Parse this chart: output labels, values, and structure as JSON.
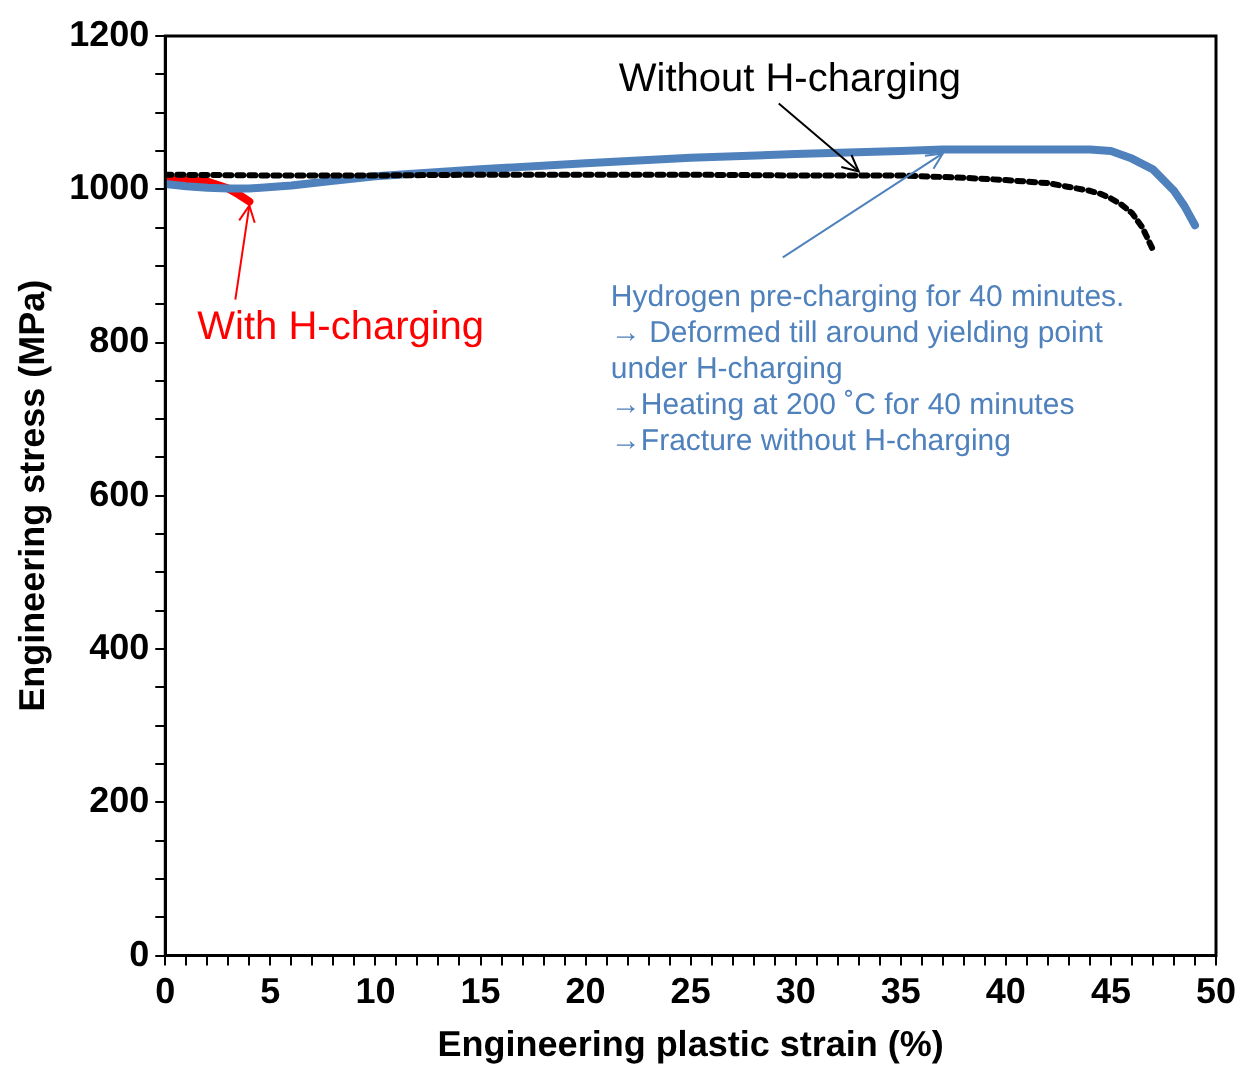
{
  "chart_data": {
    "type": "line",
    "xlabel": "Engineering plastic strain (%)",
    "ylabel": "Engineering stress (MPa)",
    "xlim": [
      0,
      50
    ],
    "ylim": [
      0,
      1200
    ],
    "xticks": [
      0,
      {
        "value": 1,
        "label": null
      },
      {
        "value": 2,
        "label": null
      },
      {
        "value": 3,
        "label": null
      },
      {
        "value": 4,
        "label": null
      },
      5,
      {
        "value": 6,
        "label": null
      },
      {
        "value": 7,
        "label": null
      },
      {
        "value": 8,
        "label": null
      },
      {
        "value": 9,
        "label": null
      },
      10,
      {
        "value": 11,
        "label": null
      },
      {
        "value": 12,
        "label": null
      },
      {
        "value": 13,
        "label": null
      },
      {
        "value": 14,
        "label": null
      },
      15,
      {
        "value": 16,
        "label": null
      },
      {
        "value": 17,
        "label": null
      },
      {
        "value": 18,
        "label": null
      },
      {
        "value": 19,
        "label": null
      },
      20,
      {
        "value": 21,
        "label": null
      },
      {
        "value": 22,
        "label": null
      },
      {
        "value": 23,
        "label": null
      },
      {
        "value": 24,
        "label": null
      },
      25,
      {
        "value": 26,
        "label": null
      },
      {
        "value": 27,
        "label": null
      },
      {
        "value": 28,
        "label": null
      },
      {
        "value": 29,
        "label": null
      },
      30,
      {
        "value": 31,
        "label": null
      },
      {
        "value": 32,
        "label": null
      },
      {
        "value": 33,
        "label": null
      },
      {
        "value": 34,
        "label": null
      },
      35,
      {
        "value": 36,
        "label": null
      },
      {
        "value": 37,
        "label": null
      },
      {
        "value": 38,
        "label": null
      },
      {
        "value": 39,
        "label": null
      },
      40,
      {
        "value": 41,
        "label": null
      },
      {
        "value": 42,
        "label": null
      },
      {
        "value": 43,
        "label": null
      },
      {
        "value": 44,
        "label": null
      },
      45,
      {
        "value": 46,
        "label": null
      },
      {
        "value": 47,
        "label": null
      },
      {
        "value": 48,
        "label": null
      },
      {
        "value": 49,
        "label": null
      },
      50
    ],
    "yticks": [
      0,
      {
        "value": 50,
        "label": null
      },
      {
        "value": 100,
        "label": null
      },
      {
        "value": 150,
        "label": null
      },
      200,
      {
        "value": 250,
        "label": null
      },
      {
        "value": 300,
        "label": null
      },
      {
        "value": 350,
        "label": null
      },
      400,
      {
        "value": 450,
        "label": null
      },
      {
        "value": 500,
        "label": null
      },
      {
        "value": 550,
        "label": null
      },
      600,
      {
        "value": 650,
        "label": null
      },
      {
        "value": 700,
        "label": null
      },
      {
        "value": 750,
        "label": null
      },
      800,
      {
        "value": 850,
        "label": null
      },
      {
        "value": 900,
        "label": null
      },
      {
        "value": 950,
        "label": null
      },
      1000,
      {
        "value": 1050,
        "label": null
      },
      {
        "value": 1100,
        "label": null
      },
      {
        "value": 1150,
        "label": null
      },
      1200
    ],
    "grid": false,
    "legend": false,
    "marker": "none",
    "series": [
      {
        "color": "#000000",
        "line_style": "dotted",
        "x": [
          0,
          5,
          10,
          15,
          20,
          25,
          30,
          35,
          38,
          40,
          42,
          43,
          44,
          44.5,
          45,
          45.5,
          46,
          46.5,
          47
        ],
        "values": [
          1019,
          1018,
          1018,
          1019,
          1019,
          1019,
          1018,
          1018,
          1015,
          1012,
          1008,
          1003,
          998,
          994,
          988,
          980,
          969,
          950,
          921
        ]
      },
      {
        "color": "#4f81bd",
        "line_style": "solid",
        "x": [
          0,
          1,
          2,
          3,
          4,
          6,
          8,
          10,
          15,
          20,
          25,
          30,
          35,
          37,
          40,
          44,
          45,
          46,
          47,
          48,
          48.5,
          49
        ],
        "values": [
          1007,
          1004,
          1002,
          1001,
          1001,
          1005,
          1011,
          1017,
          1026,
          1034,
          1041,
          1046,
          1050,
          1052,
          1052,
          1052,
          1050,
          1040,
          1026,
          998,
          978,
          953
        ]
      },
      {
        "color": "#ff0000",
        "line_style": "solid",
        "x": [
          0,
          1,
          2,
          3,
          3.5,
          4
        ],
        "values": [
          1012,
          1012,
          1010,
          1001,
          993,
          984
        ]
      }
    ],
    "annotations": [
      {
        "text": "Without H-charging",
        "x": 33,
        "y": 1018
      },
      {
        "text": "Hydrogen pre-charging for 40 minutes.\n→ Deformed till around yielding point\nunder H-charging\n→Heating at 200 ˚C for 40 minutes\n→Fracture without H-charging",
        "x": 37,
        "y": 1052
      },
      {
        "text": "With H-charging",
        "x": 4,
        "y": 984
      }
    ]
  }
}
